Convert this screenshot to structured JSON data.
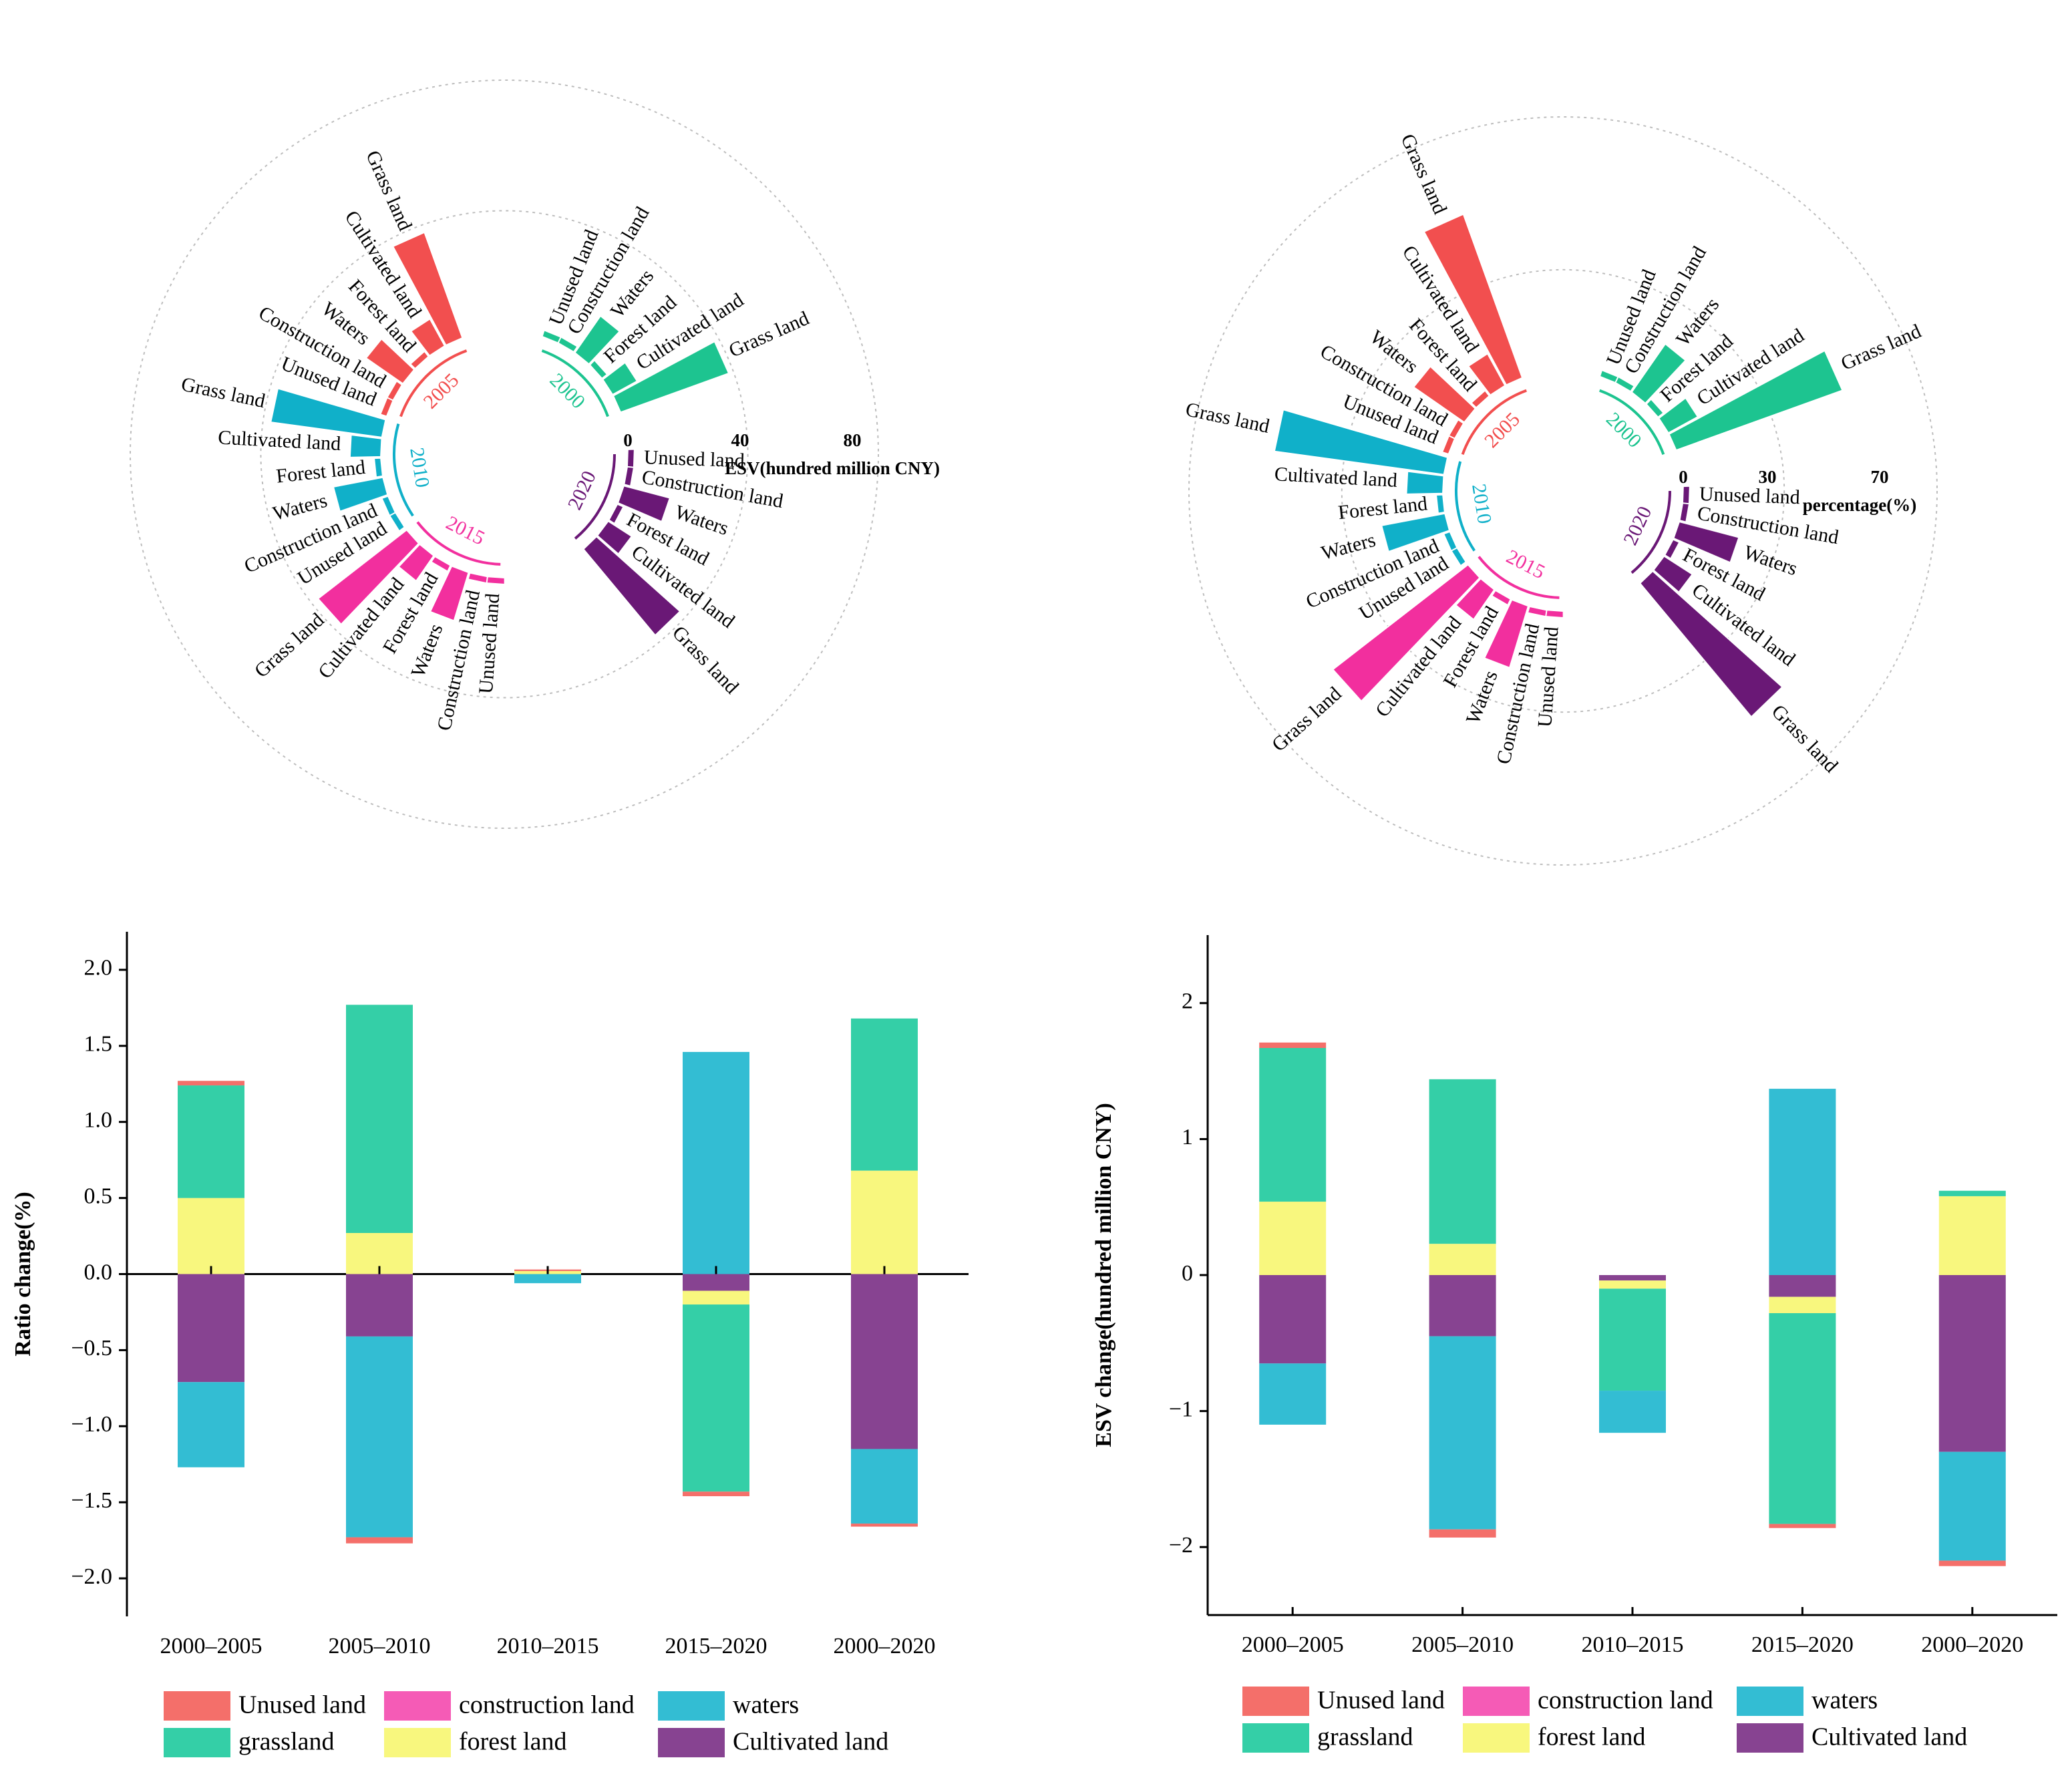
{
  "colors": {
    "unused": "#F46F6A",
    "construction": "#F55BB6",
    "waters": "#33BDD3",
    "grassland": "#34CFA7",
    "forest": "#F8F77E",
    "cultivated": "#874391",
    "y2000": "#1DC490",
    "y2005": "#F24F4F",
    "y2010": "#10B0C9",
    "y2015": "#F22F9E",
    "y2020": "#6A1876"
  },
  "chart_data": [
    {
      "type": "polar-bar",
      "title": "",
      "axis_label": "ESV(hundred million CNY)",
      "axis_ticks": [
        "0",
        "40",
        "80"
      ],
      "rmax": 95,
      "categories": [
        "Unused land",
        "Construction land",
        "Waters",
        "Forest land",
        "Cultivated land",
        "Grass land"
      ],
      "groups": [
        {
          "year": "2000",
          "color_key": "y2000",
          "values": [
            0.3,
            0.3,
            16,
            2,
            10,
            41
          ]
        },
        {
          "year": "2005",
          "color_key": "y2005",
          "values": [
            0.3,
            0.3,
            16,
            2,
            11,
            40
          ]
        },
        {
          "year": "2010",
          "color_key": "y2010",
          "values": [
            0.3,
            0.3,
            18,
            1.5,
            11,
            40
          ]
        },
        {
          "year": "2015",
          "color_key": "y2015",
          "values": [
            0.3,
            0.3,
            18,
            1.5,
            11,
            40
          ]
        },
        {
          "year": "2020",
          "color_key": "y2020",
          "values": [
            0.3,
            0.3,
            17,
            2,
            10,
            40
          ]
        }
      ]
    },
    {
      "type": "polar-bar",
      "title": "",
      "axis_label": "percentage(%)",
      "axis_ticks": [
        "0",
        "30",
        "70"
      ],
      "rmax": 80,
      "categories": [
        "Unused land",
        "Construction land",
        "Waters",
        "Forest land",
        "Cultivated land",
        "Grass land"
      ],
      "groups": [
        {
          "year": "2000",
          "color_key": "y2000",
          "values": [
            0.5,
            0.3,
            21,
            2.5,
            12,
            63
          ]
        },
        {
          "year": "2005",
          "color_key": "y2005",
          "values": [
            0.5,
            0.3,
            22,
            2.5,
            13,
            62
          ]
        },
        {
          "year": "2010",
          "color_key": "y2010",
          "values": [
            0.5,
            0.3,
            23,
            2,
            13,
            61
          ]
        },
        {
          "year": "2015",
          "color_key": "y2015",
          "values": [
            0.5,
            0.3,
            23,
            2,
            13,
            61
          ]
        },
        {
          "year": "2020",
          "color_key": "y2020",
          "values": [
            0.5,
            0.3,
            22,
            2.5,
            12,
            62
          ]
        }
      ]
    },
    {
      "type": "bar",
      "stacked": true,
      "ylabel": "Ratio change(%)",
      "xlabel": "",
      "ylim": [
        -2.25,
        2.25
      ],
      "yticks": [
        -2.0,
        -1.5,
        -1.0,
        -0.5,
        0.0,
        0.5,
        1.0,
        1.5,
        2.0
      ],
      "ytick_labels": [
        "−2.0",
        "−1.5",
        "−1.0",
        "−0.5",
        "0.0",
        "0.5",
        "1.0",
        "1.5",
        "2.0"
      ],
      "categories": [
        "2000–2005",
        "2005–2010",
        "2010–2015",
        "2015–2020",
        "2000–2020"
      ],
      "series": [
        {
          "name": "Unused land",
          "color_key": "unused",
          "values": [
            0.03,
            -0.04,
            0.01,
            -0.03,
            -0.02
          ]
        },
        {
          "name": "construction land",
          "color_key": "construction",
          "values": [
            0.0,
            0.0,
            0.0,
            0.0,
            0.0
          ]
        },
        {
          "name": "waters",
          "color_key": "waters",
          "values": [
            -0.56,
            -1.32,
            -0.06,
            1.46,
            -0.49
          ]
        },
        {
          "name": "grassland",
          "color_key": "grassland",
          "values": [
            0.74,
            1.5,
            0.0,
            -1.23,
            1.0
          ]
        },
        {
          "name": "forest land",
          "color_key": "forest",
          "values": [
            0.5,
            0.27,
            0.02,
            -0.09,
            0.68
          ]
        },
        {
          "name": "Cultivated land",
          "color_key": "cultivated",
          "values": [
            -0.71,
            -0.41,
            0.07,
            -0.11,
            -1.15
          ]
        }
      ]
    },
    {
      "type": "bar",
      "stacked": true,
      "ylabel": "ESV change(hundred million CNY)",
      "xlabel": "",
      "ylim": [
        -2.5,
        2.5
      ],
      "yticks": [
        -2,
        -1,
        0,
        1,
        2
      ],
      "ytick_labels": [
        "−2",
        "−1",
        "0",
        "1",
        "2"
      ],
      "categories": [
        "2000–2005",
        "2005–2010",
        "2010–2015",
        "2015–2020",
        "2000–2020"
      ],
      "series": [
        {
          "name": "Unused land",
          "color_key": "unused",
          "values": [
            0.04,
            -0.06,
            0.0,
            -0.03,
            -0.04
          ]
        },
        {
          "name": "construction land",
          "color_key": "construction",
          "values": [
            0.0,
            0.0,
            0.0,
            0.0,
            0.0
          ]
        },
        {
          "name": "waters",
          "color_key": "waters",
          "values": [
            -0.45,
            -1.42,
            -0.31,
            1.37,
            -0.8
          ]
        },
        {
          "name": "grassland",
          "color_key": "grassland",
          "values": [
            1.13,
            1.21,
            -0.75,
            -1.55,
            0.04
          ]
        },
        {
          "name": "forest land",
          "color_key": "forest",
          "values": [
            0.54,
            0.23,
            -0.06,
            -0.12,
            0.58
          ]
        },
        {
          "name": "Cultivated land",
          "color_key": "cultivated",
          "values": [
            -0.65,
            -0.45,
            -0.04,
            -0.16,
            -1.3
          ]
        }
      ]
    }
  ]
}
